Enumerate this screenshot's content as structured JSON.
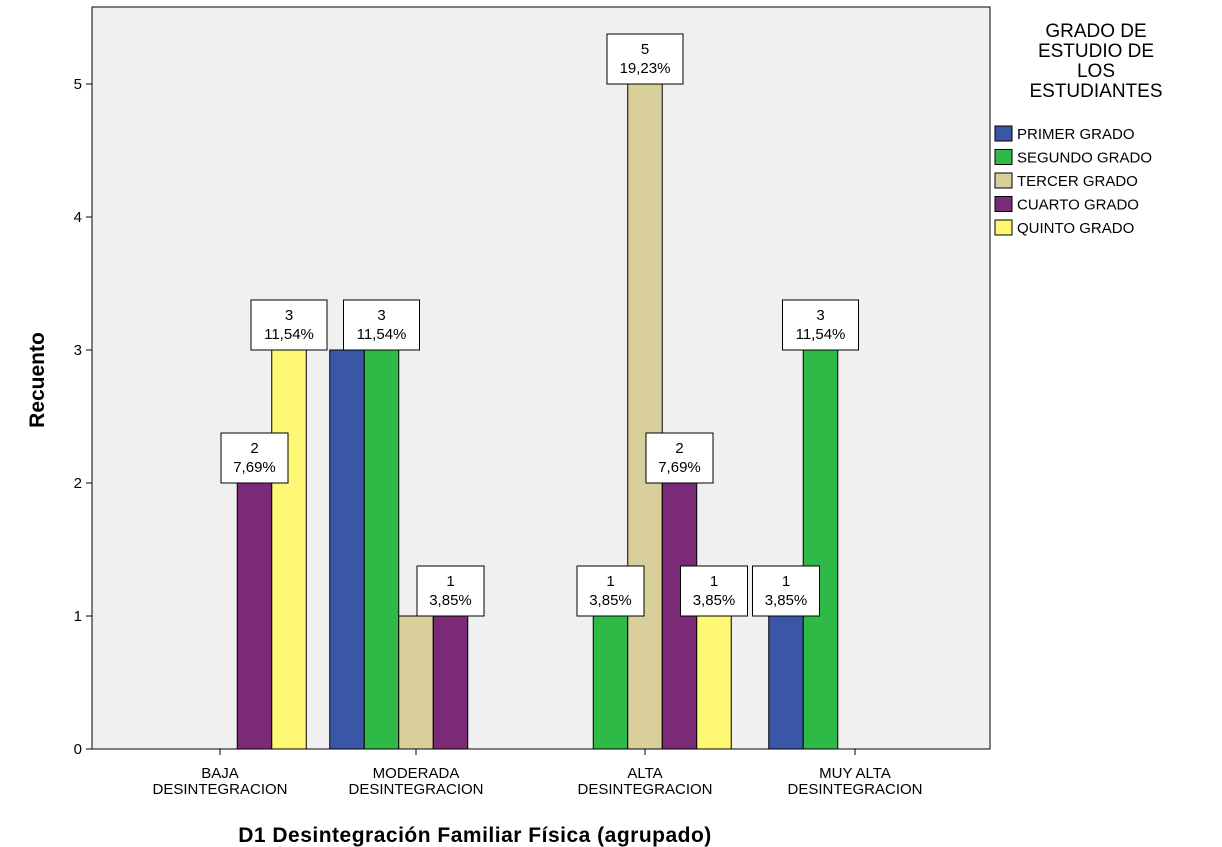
{
  "chart_data": {
    "type": "bar",
    "xlabel": "D1 Desintegración Familiar Física (agrupado)",
    "ylabel": "Recuento",
    "ylim": [
      0,
      5.5
    ],
    "yticks": [
      "0",
      "1",
      "2",
      "3",
      "4",
      "5"
    ],
    "categories": [
      [
        "BAJA",
        "DESINTEGRACION"
      ],
      [
        "MODERADA",
        "DESINTEGRACION"
      ],
      [
        "ALTA",
        "DESINTEGRACION"
      ],
      [
        "MUY ALTA",
        "DESINTEGRACION"
      ]
    ],
    "legend": {
      "title": [
        "GRADO DE",
        "ESTUDIO DE",
        "LOS",
        "ESTUDIANTES"
      ],
      "position": "right"
    },
    "series": [
      {
        "name": "PRIMER GRADO",
        "color": "#3a56a6",
        "values": [
          0,
          3,
          0,
          1
        ],
        "labels": [
          null,
          null,
          null,
          [
            "1",
            "3,85%"
          ]
        ]
      },
      {
        "name": "SEGUNDO GRADO",
        "color": "#2fba47",
        "values": [
          0,
          3,
          1,
          3
        ],
        "labels": [
          null,
          [
            "3",
            "11,54%"
          ],
          [
            "1",
            "3,85%"
          ],
          [
            "3",
            "11,54%"
          ]
        ]
      },
      {
        "name": "TERCER GRADO",
        "color": "#d8cf9a",
        "values": [
          0,
          1,
          5,
          0
        ],
        "labels": [
          null,
          null,
          [
            "5",
            "19,23%"
          ],
          null
        ]
      },
      {
        "name": "CUARTO GRADO",
        "color": "#7b2a78",
        "values": [
          2,
          1,
          2,
          0
        ],
        "labels": [
          [
            "2",
            "7,69%"
          ],
          [
            "1",
            "3,85%"
          ],
          [
            "2",
            "7,69%"
          ],
          null
        ]
      },
      {
        "name": "QUINTO GRADO",
        "color": "#fdf774",
        "values": [
          3,
          0,
          1,
          0
        ],
        "labels": [
          [
            "3",
            "11,54%"
          ],
          null,
          [
            "1",
            "3,85%"
          ],
          null
        ]
      }
    ]
  }
}
